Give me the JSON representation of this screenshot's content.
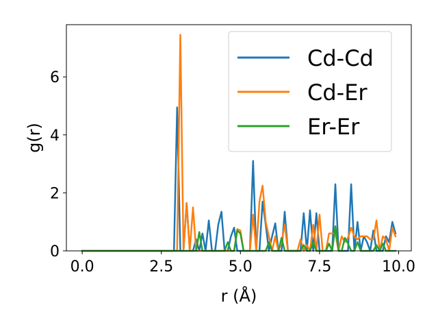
{
  "chart_data": {
    "type": "line",
    "title": "",
    "xlabel": "r (Å)",
    "ylabel": "g(r)",
    "xlim": [
      -0.5,
      10.4
    ],
    "ylim": [
      0,
      7.8
    ],
    "xticks": [
      0.0,
      2.5,
      5.0,
      7.5,
      10.0
    ],
    "xtick_labels": [
      "0.0",
      "2.5",
      "5.0",
      "7.5",
      "10.0"
    ],
    "yticks": [
      0,
      2,
      4,
      6
    ],
    "ytick_labels": [
      "0",
      "2",
      "4",
      "6"
    ],
    "grid": false,
    "legend_position": "top-right",
    "series": [
      {
        "name": "Cd-Cd",
        "color": "#1f77b4",
        "x": [
          0.0,
          2.9,
          3.0,
          3.1,
          3.2,
          3.3,
          3.4,
          3.5,
          3.6,
          3.7,
          3.8,
          3.9,
          4.0,
          4.1,
          4.2,
          4.3,
          4.4,
          4.5,
          4.6,
          4.7,
          4.8,
          4.9,
          5.0,
          5.1,
          5.2,
          5.3,
          5.4,
          5.5,
          5.6,
          5.7,
          5.8,
          5.9,
          6.0,
          6.1,
          6.2,
          6.3,
          6.4,
          6.5,
          6.6,
          6.7,
          6.8,
          6.9,
          7.0,
          7.1,
          7.2,
          7.3,
          7.4,
          7.5,
          7.6,
          7.7,
          7.8,
          7.9,
          8.0,
          8.1,
          8.2,
          8.3,
          8.4,
          8.5,
          8.6,
          8.7,
          8.8,
          8.9,
          9.0,
          9.1,
          9.2,
          9.3,
          9.4,
          9.5,
          9.6,
          9.7,
          9.8,
          9.9
        ],
        "y": [
          0,
          0,
          4.95,
          0,
          0,
          1.65,
          0,
          0,
          0.4,
          0,
          0.6,
          0,
          1.05,
          0,
          0,
          0.9,
          1.35,
          0,
          0,
          0.5,
          0.8,
          0,
          0,
          0,
          0,
          0,
          3.1,
          0,
          0,
          1.7,
          0.9,
          0,
          0.5,
          0.95,
          0,
          0,
          1.35,
          0,
          0,
          0,
          0,
          0,
          1.3,
          0,
          1.4,
          0,
          1.3,
          0,
          0,
          0,
          0,
          0,
          2.3,
          0,
          0,
          0,
          0,
          2.3,
          0,
          1.0,
          0,
          0.5,
          0.3,
          0,
          0.7,
          0,
          0,
          0,
          0.5,
          0.3,
          1.0,
          0.6
        ]
      },
      {
        "name": "Cd-Er",
        "color": "#ff7f0e",
        "x": [
          0.0,
          3.0,
          3.1,
          3.2,
          3.3,
          3.4,
          3.5,
          3.6,
          3.7,
          3.8,
          3.9,
          4.0,
          4.1,
          4.2,
          4.3,
          4.4,
          4.5,
          4.6,
          4.7,
          4.8,
          4.9,
          5.0,
          5.1,
          5.2,
          5.3,
          5.4,
          5.5,
          5.6,
          5.7,
          5.8,
          5.9,
          6.0,
          6.1,
          6.2,
          6.3,
          6.4,
          6.5,
          6.6,
          6.7,
          6.8,
          6.9,
          7.0,
          7.1,
          7.2,
          7.3,
          7.4,
          7.5,
          7.6,
          7.7,
          7.8,
          7.9,
          8.0,
          8.1,
          8.2,
          8.3,
          8.4,
          8.5,
          8.6,
          8.7,
          8.8,
          8.9,
          9.0,
          9.1,
          9.2,
          9.3,
          9.4,
          9.5,
          9.6,
          9.7,
          9.8,
          9.9
        ],
        "y": [
          0,
          0,
          7.45,
          0,
          1.65,
          0,
          1.5,
          0,
          0,
          0,
          0,
          0,
          0,
          0,
          0,
          0,
          0,
          0,
          0,
          0,
          0.75,
          0.7,
          0,
          0,
          0,
          1.25,
          0,
          1.7,
          2.25,
          1.0,
          0.5,
          0,
          0.5,
          0,
          0.3,
          0.9,
          0,
          0,
          0,
          0,
          0.4,
          0,
          0.2,
          0,
          0.9,
          0,
          1.25,
          0,
          0,
          0.6,
          0.6,
          0.6,
          0,
          0.5,
          0.3,
          0.45,
          0.8,
          0.5,
          0.4,
          0.5,
          0.5,
          0.5,
          0.4,
          0.4,
          1.05,
          0,
          0.5,
          0.4,
          0,
          0.8,
          0.5
        ]
      },
      {
        "name": "Er-Er",
        "color": "#2ca02c",
        "x": [
          0.0,
          3.6,
          3.7,
          3.8,
          3.9,
          4.0,
          4.1,
          4.2,
          4.3,
          4.4,
          4.5,
          4.6,
          4.7,
          4.8,
          4.9,
          5.0,
          5.1,
          5.2,
          5.3,
          5.4,
          5.5,
          5.6,
          5.7,
          5.8,
          5.9,
          6.0,
          6.1,
          6.2,
          6.3,
          6.4,
          6.5,
          6.6,
          6.7,
          6.8,
          6.9,
          7.0,
          7.1,
          7.2,
          7.3,
          7.4,
          7.5,
          7.6,
          7.7,
          7.8,
          7.9,
          8.0,
          8.1,
          8.2,
          8.3,
          8.4,
          8.5,
          8.6,
          8.7,
          8.8,
          8.9,
          9.0,
          9.1,
          9.2,
          9.3,
          9.4,
          9.5,
          9.6,
          9.7,
          9.8,
          9.9
        ],
        "y": [
          0,
          0,
          0.65,
          0,
          0,
          0,
          0,
          0,
          0,
          0,
          0,
          0.3,
          0,
          0,
          0.7,
          0.6,
          0,
          0,
          0,
          0,
          0,
          0,
          0,
          0,
          0.3,
          0,
          0,
          0,
          0.45,
          0,
          0,
          0,
          0,
          0,
          0,
          0.2,
          0,
          0,
          0.3,
          0,
          0,
          0,
          0,
          0.25,
          0,
          0.85,
          0,
          0,
          0.45,
          0.25,
          0,
          0,
          0.3,
          0,
          0,
          0,
          0,
          0,
          0.2,
          0,
          0.25,
          0,
          0,
          0,
          0
        ]
      }
    ]
  }
}
